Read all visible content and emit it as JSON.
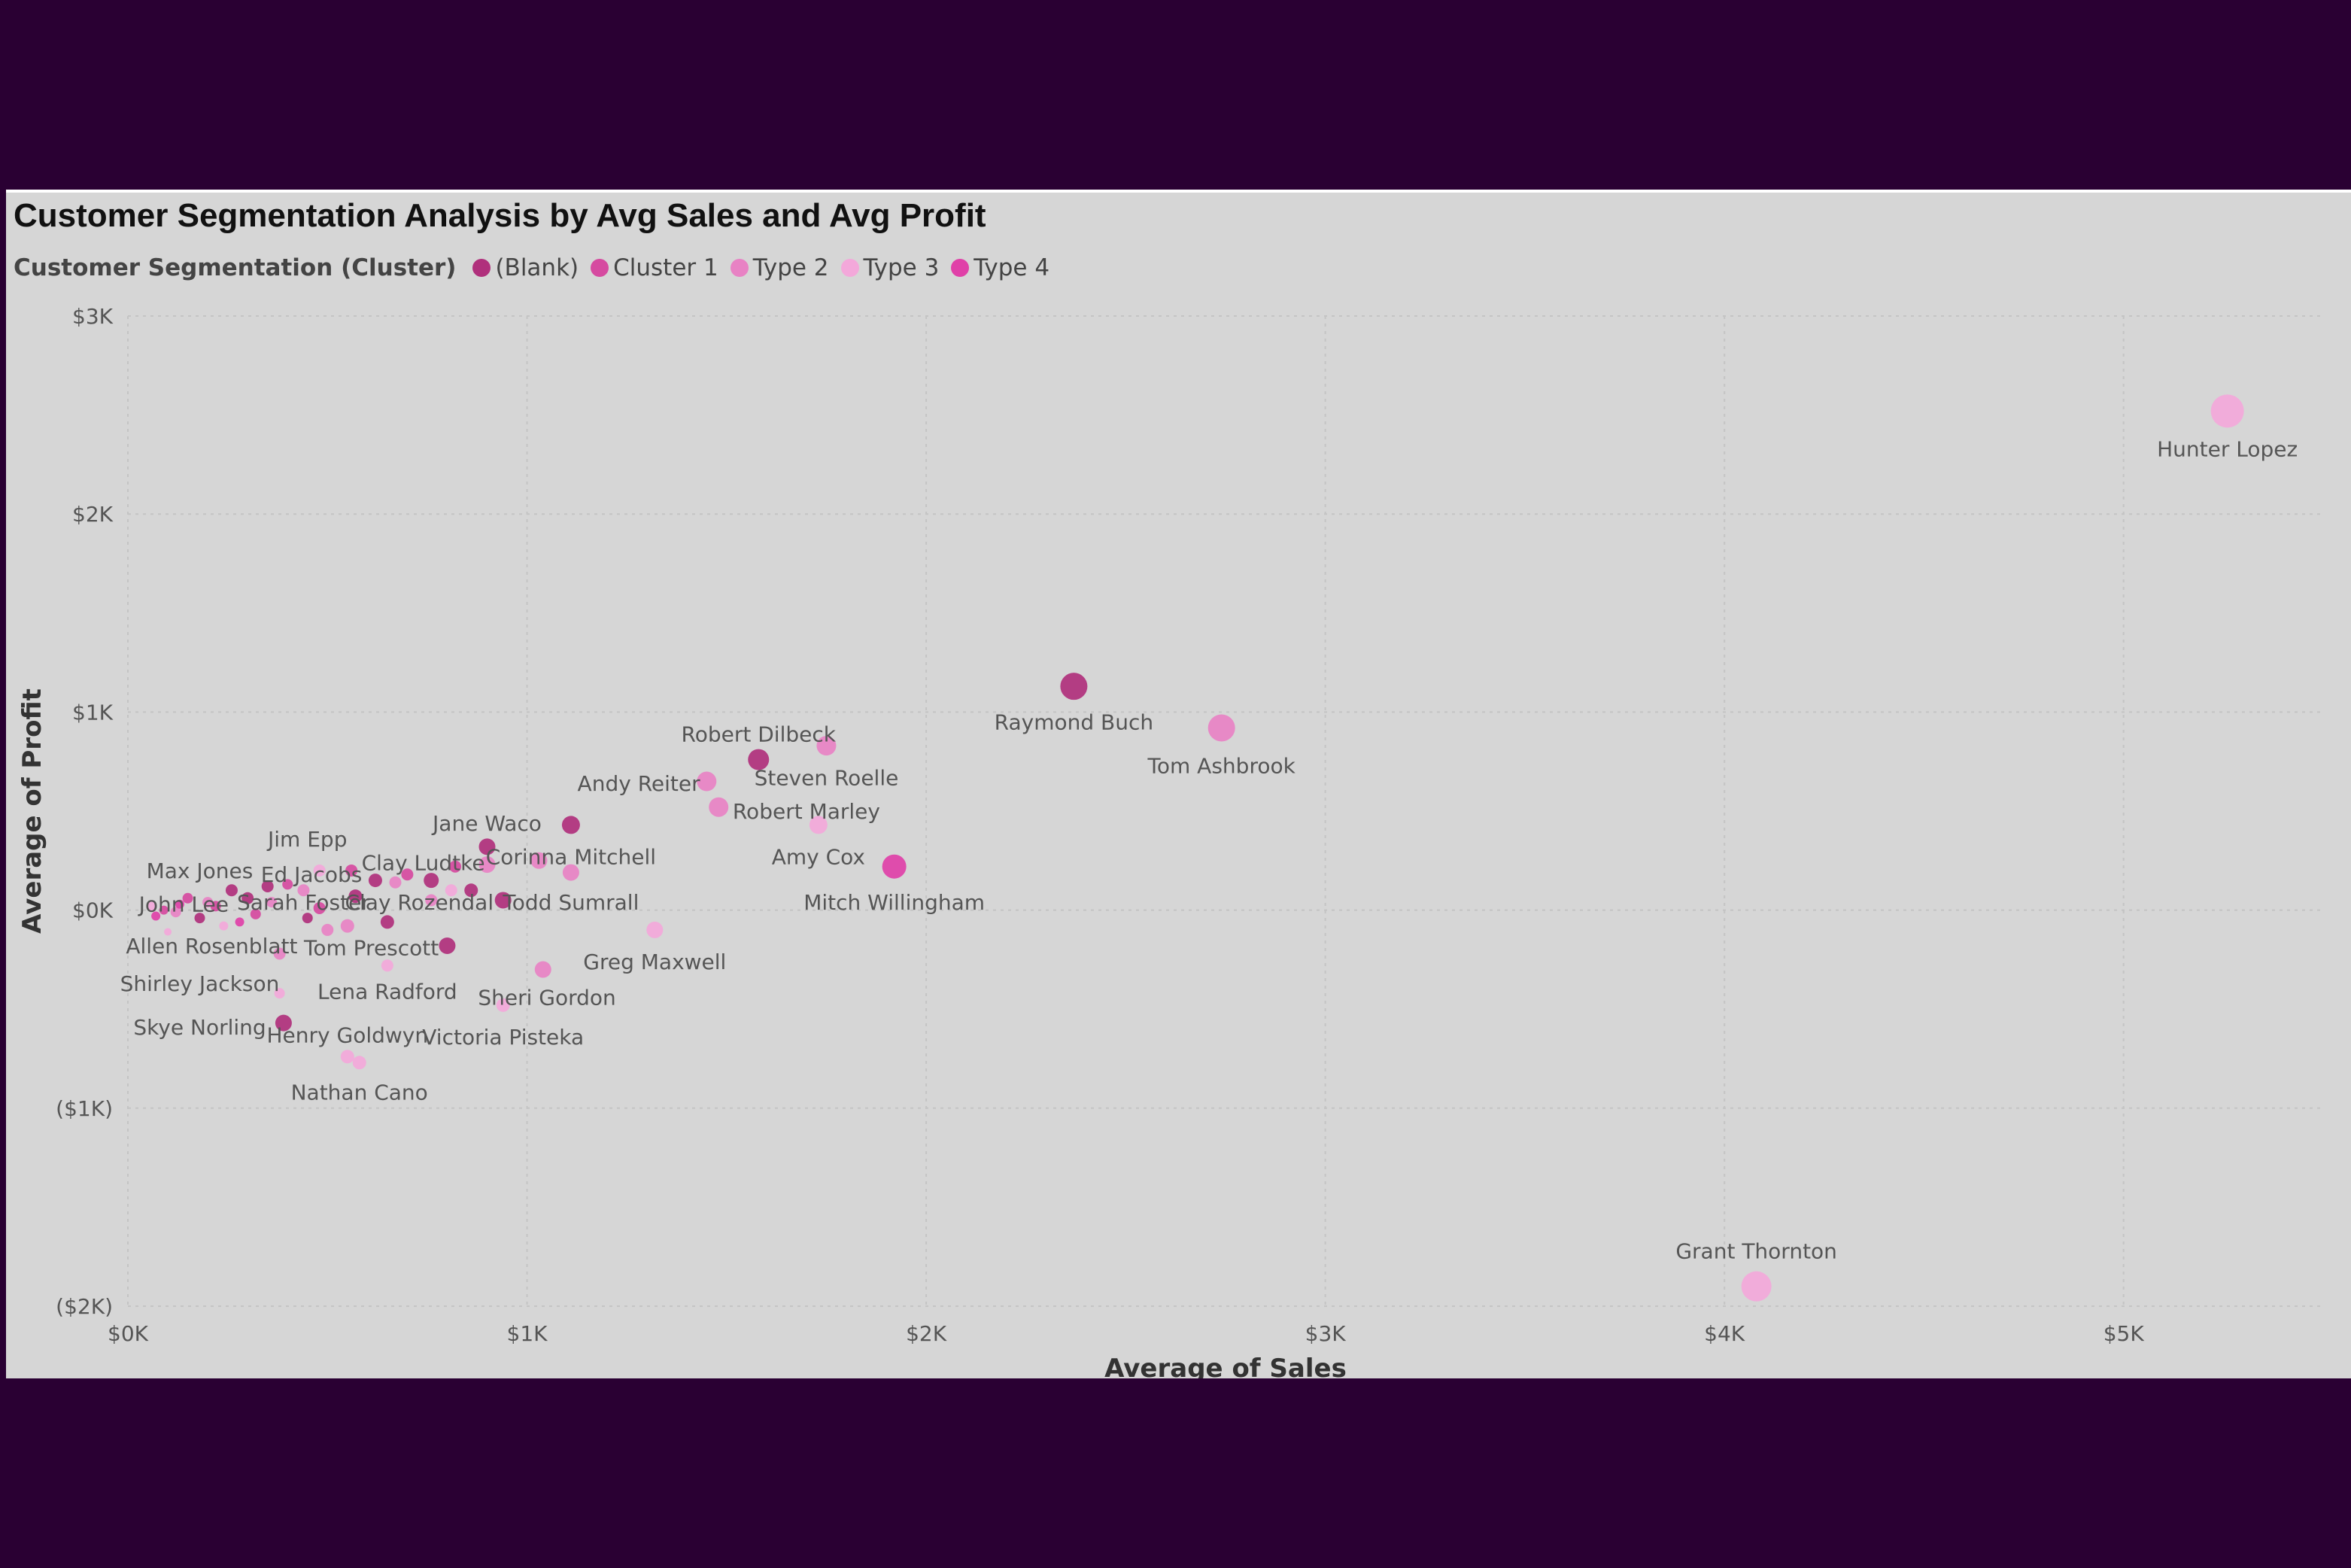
{
  "chart_data": {
    "type": "scatter",
    "title": "Customer Segmentation Analysis by Avg Sales and Avg Profit",
    "xlabel": "Average of Sales",
    "ylabel": "Average of Profit",
    "xlim": [
      0,
      5500
    ],
    "ylim": [
      -2000,
      3000
    ],
    "x_ticks": [
      0,
      1000,
      2000,
      3000,
      4000,
      5000
    ],
    "x_tick_labels": [
      "$0K",
      "$1K",
      "$2K",
      "$3K",
      "$4K",
      "$5K"
    ],
    "y_ticks": [
      3000,
      2000,
      1000,
      0,
      -1000,
      -2000
    ],
    "y_tick_labels": [
      "$3K",
      "$2K",
      "$1K",
      "$0K",
      "($1K)",
      "($2K)"
    ],
    "grid": true,
    "legend": {
      "title": "Customer Segmentation (Cluster)",
      "position": "top-left",
      "items": [
        {
          "name": "(Blank)",
          "color": "#b0307c"
        },
        {
          "name": "Cluster 1",
          "color": "#d64aa0"
        },
        {
          "name": "Type 2",
          "color": "#e882c4"
        },
        {
          "name": "Type 3",
          "color": "#f3a8da"
        },
        {
          "name": "Type 4",
          "color": "#e040a8"
        }
      ]
    },
    "series": [
      {
        "name": "(Blank)",
        "color": "#b0307c",
        "points": [
          {
            "x": 2370,
            "y": 1130,
            "label": "Raymond Buch",
            "size": 18
          },
          {
            "x": 1580,
            "y": 760,
            "label": "",
            "size": 14
          },
          {
            "x": 1110,
            "y": 430,
            "label": "",
            "size": 12
          },
          {
            "x": 900,
            "y": 320,
            "label": "",
            "size": 11
          },
          {
            "x": 940,
            "y": 50,
            "label": "",
            "size": 11
          },
          {
            "x": 800,
            "y": -180,
            "label": "",
            "size": 11
          },
          {
            "x": 390,
            "y": -570,
            "label": "",
            "size": 11
          },
          {
            "x": 650,
            "y": -60,
            "label": "",
            "size": 9
          },
          {
            "x": 760,
            "y": 150,
            "label": "",
            "size": 10
          },
          {
            "x": 860,
            "y": 100,
            "label": "",
            "size": 9
          },
          {
            "x": 620,
            "y": 150,
            "label": "",
            "size": 9
          },
          {
            "x": 570,
            "y": 70,
            "label": "",
            "size": 9
          },
          {
            "x": 300,
            "y": 60,
            "label": "",
            "size": 8
          },
          {
            "x": 180,
            "y": -40,
            "label": "",
            "size": 7
          },
          {
            "x": 450,
            "y": -40,
            "label": "",
            "size": 7
          },
          {
            "x": 260,
            "y": 100,
            "label": "",
            "size": 8
          },
          {
            "x": 350,
            "y": 120,
            "label": "",
            "size": 8
          }
        ]
      },
      {
        "name": "Cluster 1",
        "color": "#d64aa0",
        "points": [
          {
            "x": 480,
            "y": 10,
            "label": "",
            "size": 8
          },
          {
            "x": 700,
            "y": 180,
            "label": "",
            "size": 8
          },
          {
            "x": 820,
            "y": 220,
            "label": "",
            "size": 8
          },
          {
            "x": 560,
            "y": 200,
            "label": "",
            "size": 8
          },
          {
            "x": 400,
            "y": 130,
            "label": "",
            "size": 7
          },
          {
            "x": 220,
            "y": 20,
            "label": "",
            "size": 7
          },
          {
            "x": 150,
            "y": 60,
            "label": "",
            "size": 7
          },
          {
            "x": 90,
            "y": 0,
            "label": "",
            "size": 6
          },
          {
            "x": 320,
            "y": -20,
            "label": "",
            "size": 7
          }
        ]
      },
      {
        "name": "Type 2",
        "color": "#e882c4",
        "points": [
          {
            "x": 2740,
            "y": 920,
            "label": "Tom Ashbrook",
            "size": 18
          },
          {
            "x": 1750,
            "y": 830,
            "label": "",
            "size": 13
          },
          {
            "x": 1450,
            "y": 650,
            "label": "",
            "size": 13
          },
          {
            "x": 1480,
            "y": 520,
            "label": "",
            "size": 13
          },
          {
            "x": 1110,
            "y": 190,
            "label": "",
            "size": 11
          },
          {
            "x": 1030,
            "y": 250,
            "label": "",
            "size": 11
          },
          {
            "x": 900,
            "y": 230,
            "label": "",
            "size": 11
          },
          {
            "x": 1040,
            "y": -300,
            "label": "",
            "size": 11
          },
          {
            "x": 550,
            "y": -80,
            "label": "",
            "size": 9
          },
          {
            "x": 500,
            "y": -100,
            "label": "",
            "size": 8
          },
          {
            "x": 380,
            "y": -220,
            "label": "",
            "size": 8
          },
          {
            "x": 760,
            "y": 50,
            "label": "",
            "size": 8
          },
          {
            "x": 670,
            "y": 140,
            "label": "",
            "size": 8
          },
          {
            "x": 440,
            "y": 100,
            "label": "",
            "size": 8
          },
          {
            "x": 200,
            "y": 40,
            "label": "",
            "size": 7
          },
          {
            "x": 120,
            "y": -10,
            "label": "",
            "size": 7
          },
          {
            "x": 360,
            "y": 40,
            "label": "",
            "size": 7
          }
        ]
      },
      {
        "name": "Type 3",
        "color": "#f3a8da",
        "points": [
          {
            "x": 5260,
            "y": 2520,
            "label": "Hunter Lopez",
            "size": 22
          },
          {
            "x": 4080,
            "y": -1900,
            "label": "Grant Thornton",
            "size": 20
          },
          {
            "x": 1730,
            "y": 430,
            "label": "",
            "size": 12
          },
          {
            "x": 1320,
            "y": -100,
            "label": "",
            "size": 11
          },
          {
            "x": 940,
            "y": -480,
            "label": "",
            "size": 9
          },
          {
            "x": 650,
            "y": -280,
            "label": "",
            "size": 8
          },
          {
            "x": 550,
            "y": -740,
            "label": "",
            "size": 9
          },
          {
            "x": 580,
            "y": -770,
            "label": "",
            "size": 9
          },
          {
            "x": 380,
            "y": -420,
            "label": "",
            "size": 7
          },
          {
            "x": 810,
            "y": 100,
            "label": "",
            "size": 8
          },
          {
            "x": 480,
            "y": 200,
            "label": "",
            "size": 8
          },
          {
            "x": 240,
            "y": -80,
            "label": "",
            "size": 6
          },
          {
            "x": 60,
            "y": 20,
            "label": "",
            "size": 6
          },
          {
            "x": 100,
            "y": -110,
            "label": "",
            "size": 5
          }
        ]
      },
      {
        "name": "Type 4",
        "color": "#e040a8",
        "points": [
          {
            "x": 1920,
            "y": 220,
            "label": "",
            "size": 16
          },
          {
            "x": 130,
            "y": 30,
            "label": "",
            "size": 6
          },
          {
            "x": 70,
            "y": -30,
            "label": "",
            "size": 6
          },
          {
            "x": 280,
            "y": -60,
            "label": "",
            "size": 6
          }
        ]
      }
    ],
    "annotations": [
      {
        "text": "Hunter Lopez",
        "x": 5260,
        "y": 2330
      },
      {
        "text": "Raymond Buch",
        "x": 2370,
        "y": 950
      },
      {
        "text": "Tom Ashbrook",
        "x": 2740,
        "y": 730
      },
      {
        "text": "Robert Dilbeck",
        "x": 1580,
        "y": 890
      },
      {
        "text": "Steven Roelle",
        "x": 1750,
        "y": 670
      },
      {
        "text": "Andy Reiter",
        "x": 1280,
        "y": 640
      },
      {
        "text": "Robert Marley",
        "x": 1700,
        "y": 500
      },
      {
        "text": "Jane Waco",
        "x": 900,
        "y": 440
      },
      {
        "text": "Jim Epp",
        "x": 450,
        "y": 360
      },
      {
        "text": "Corinna Mitchell",
        "x": 1110,
        "y": 270
      },
      {
        "text": "Amy Cox",
        "x": 1730,
        "y": 270
      },
      {
        "text": "Clay Ludtke",
        "x": 740,
        "y": 240
      },
      {
        "text": "Max Jones",
        "x": 180,
        "y": 200
      },
      {
        "text": "Ed Jacobs",
        "x": 460,
        "y": 180
      },
      {
        "text": "Mitch Willingham",
        "x": 1920,
        "y": 40
      },
      {
        "text": "Todd Sumrall",
        "x": 1110,
        "y": 40
      },
      {
        "text": "Clay Rozendal",
        "x": 730,
        "y": 40
      },
      {
        "text": "Sarah Foster",
        "x": 440,
        "y": 40
      },
      {
        "text": "John Lee",
        "x": 140,
        "y": 30
      },
      {
        "text": "Allen Rosenblatt",
        "x": 210,
        "y": -180
      },
      {
        "text": "Tom Prescott",
        "x": 610,
        "y": -190
      },
      {
        "text": "Greg Maxwell",
        "x": 1320,
        "y": -260
      },
      {
        "text": "Shirley Jackson",
        "x": 180,
        "y": -370
      },
      {
        "text": "Lena Radford",
        "x": 650,
        "y": -410
      },
      {
        "text": "Sheri Gordon",
        "x": 1050,
        "y": -440
      },
      {
        "text": "Skye Norling",
        "x": 180,
        "y": -590
      },
      {
        "text": "Henry Goldwyn",
        "x": 550,
        "y": -630
      },
      {
        "text": "Victoria Pisteka",
        "x": 940,
        "y": -640
      },
      {
        "text": "Nathan Cano",
        "x": 580,
        "y": -920
      },
      {
        "text": "Grant Thornton",
        "x": 4080,
        "y": -1720
      }
    ]
  }
}
